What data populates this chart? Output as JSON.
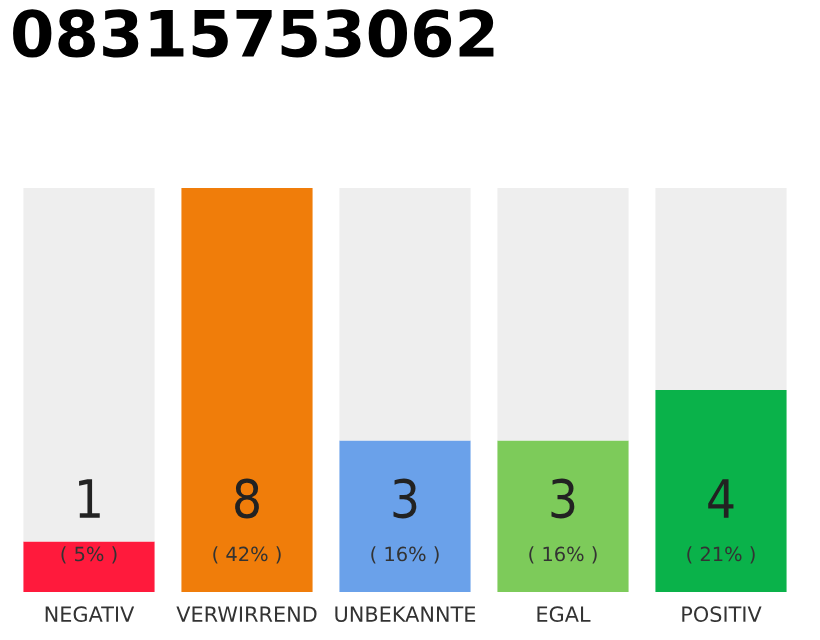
{
  "chart_data": {
    "type": "bar",
    "title": "08315753062",
    "stacked": true,
    "categories": [
      "NEGATIV",
      "VERWIRREND",
      "UNBEKANNTE",
      "EGAL",
      "POSITIV"
    ],
    "series": [
      {
        "colors": [
          "#ff1a3c",
          "#f07d0a",
          "#6aa1ea",
          "#7dcb5a",
          "#0ab24a"
        ],
        "values": [
          1,
          8,
          3,
          3,
          4
        ],
        "value_labels": [
          "1",
          "8",
          "3",
          "3",
          "4"
        ]
      },
      {
        "color": "#eeeeee",
        "values": [
          7,
          0,
          5,
          5,
          4
        ]
      }
    ],
    "annotations": [
      "( 5% )",
      "( 42% )",
      "( 16% )",
      "( 16% )",
      "( 21% )"
    ],
    "grid": false,
    "legend": false
  }
}
